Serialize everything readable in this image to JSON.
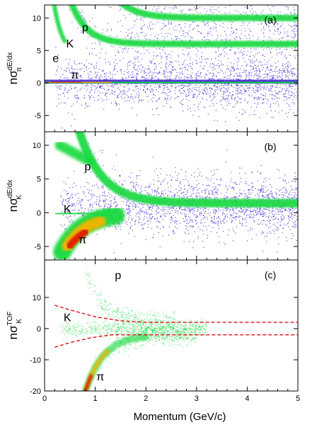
{
  "xlabel": "Momentum (GeV/c)",
  "colors": {
    "low": "#3a1fd0",
    "mid": "#17d93e",
    "high": "#f5b300",
    "peak": "#e01a00",
    "cut_line": "#e0101a"
  },
  "chart_data": [
    {
      "type": "heatmap",
      "panel": "(a)",
      "ylabel_main": "nσ",
      "ylabel_sup": "dE/dx",
      "ylabel_sub": "π",
      "xlim": [
        0,
        5
      ],
      "ylim": [
        -7.5,
        12
      ],
      "xticks": [
        "0",
        "1",
        "2",
        "3",
        "4",
        "5"
      ],
      "yticks": [
        -5,
        0,
        5,
        10
      ],
      "ytick_labels": [
        "-5",
        "0",
        "5",
        "10"
      ],
      "bands": [
        {
          "label": "π",
          "label_at": [
            0.6,
            1.2
          ]
        },
        {
          "label": "e",
          "label_at": [
            0.22,
            3.8
          ]
        },
        {
          "label": "K",
          "label_at": [
            0.5,
            6.0
          ]
        },
        {
          "label": "p",
          "label_at": [
            0.8,
            8.5
          ]
        }
      ]
    },
    {
      "type": "heatmap",
      "panel": "(b)",
      "ylabel_main": "nσ",
      "ylabel_sup": "dE/dx",
      "ylabel_sub": "K",
      "xlim": [
        0,
        5
      ],
      "ylim": [
        -7,
        12
      ],
      "xticks": [
        "0",
        "1",
        "2",
        "3",
        "4",
        "5"
      ],
      "yticks": [
        -5,
        0,
        5,
        10
      ],
      "ytick_labels": [
        "-5",
        "0",
        "5",
        "10"
      ],
      "bands": [
        {
          "label": "p",
          "label_at": [
            0.85,
            6.8
          ]
        },
        {
          "label": "K",
          "label_at": [
            0.45,
            0.5
          ]
        },
        {
          "label": "π",
          "label_at": [
            0.75,
            -4.0
          ]
        }
      ]
    },
    {
      "type": "heatmap",
      "panel": "(c)",
      "ylabel_main": "nσ",
      "ylabel_sup": "TOF",
      "ylabel_sub": "K",
      "xlim": [
        0,
        5
      ],
      "ylim": [
        -20,
        22
      ],
      "xticks": [
        "0",
        "1",
        "2",
        "3",
        "4",
        "5"
      ],
      "yticks": [
        -20,
        -10,
        0,
        10
      ],
      "ytick_labels": [
        "-20",
        "-10",
        "0",
        "10"
      ],
      "bands": [
        {
          "label": "p",
          "label_at": [
            1.45,
            17.0
          ]
        },
        {
          "label": "K",
          "label_at": [
            0.45,
            3.5
          ]
        },
        {
          "label": "π",
          "label_at": [
            1.1,
            -15.5
          ]
        }
      ],
      "cut_lines": [
        {
          "name": "upper",
          "points": [
            [
              0.2,
              7.5
            ],
            [
              0.5,
              6.0
            ],
            [
              1.0,
              3.8
            ],
            [
              1.5,
              2.5
            ],
            [
              2.0,
              2.0
            ],
            [
              5.0,
              2.0
            ]
          ]
        },
        {
          "name": "lower",
          "points": [
            [
              0.2,
              -6.0
            ],
            [
              0.5,
              -4.5
            ],
            [
              0.9,
              -3.0
            ],
            [
              1.3,
              -2.0
            ],
            [
              1.6,
              -2.0
            ],
            [
              5.0,
              -2.0
            ]
          ]
        }
      ]
    }
  ]
}
